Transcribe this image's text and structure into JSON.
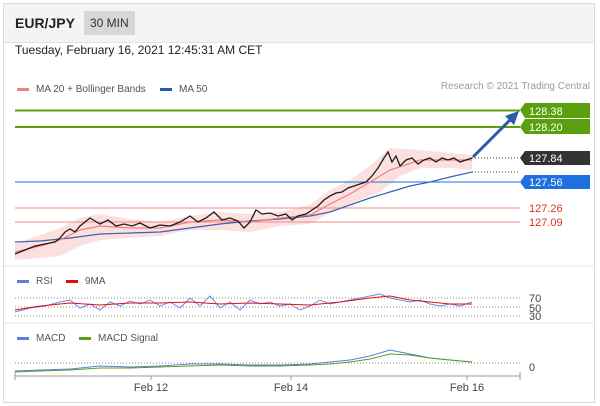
{
  "header": {
    "pair": "EUR/JPY",
    "timeframe": "30 MIN"
  },
  "datetime": "Tuesday, February 16, 2021 12:45:31 AM CET",
  "credit": "Research © 2021 Trading Central",
  "legends": {
    "main": [
      {
        "label": "MA 20 + Bollinger Bands",
        "color": "#f08080"
      },
      {
        "label": "MA 50",
        "color": "#2b5aa8"
      }
    ],
    "rsi": [
      {
        "label": "RSI",
        "color": "#5b7fe0"
      },
      {
        "label": "9MA",
        "color": "#e01010"
      }
    ],
    "macd": [
      {
        "label": "MACD",
        "color": "#5b7fe0"
      },
      {
        "label": "MACD Signal",
        "color": "#5a9e1a"
      }
    ]
  },
  "levels": [
    {
      "value": "128.38",
      "type": "resistance-box",
      "color": "#5aa00e"
    },
    {
      "value": "128.20",
      "type": "resistance-box",
      "color": "#5aa00e"
    },
    {
      "value": "127.84",
      "type": "price-box",
      "color": "#333333"
    },
    {
      "value": "127.56",
      "type": "pivot-box",
      "color": "#1e6fe0"
    },
    {
      "value": "127.26",
      "type": "support-text",
      "color": "#e0301e"
    },
    {
      "value": "127.09",
      "type": "support-text",
      "color": "#e0301e"
    }
  ],
  "rsi_levels": [
    "70",
    "50",
    "30"
  ],
  "macd_levels": [
    "0"
  ],
  "x_axis": {
    "labels": [
      "Feb 12",
      "Feb 14",
      "Feb 16"
    ]
  }
}
